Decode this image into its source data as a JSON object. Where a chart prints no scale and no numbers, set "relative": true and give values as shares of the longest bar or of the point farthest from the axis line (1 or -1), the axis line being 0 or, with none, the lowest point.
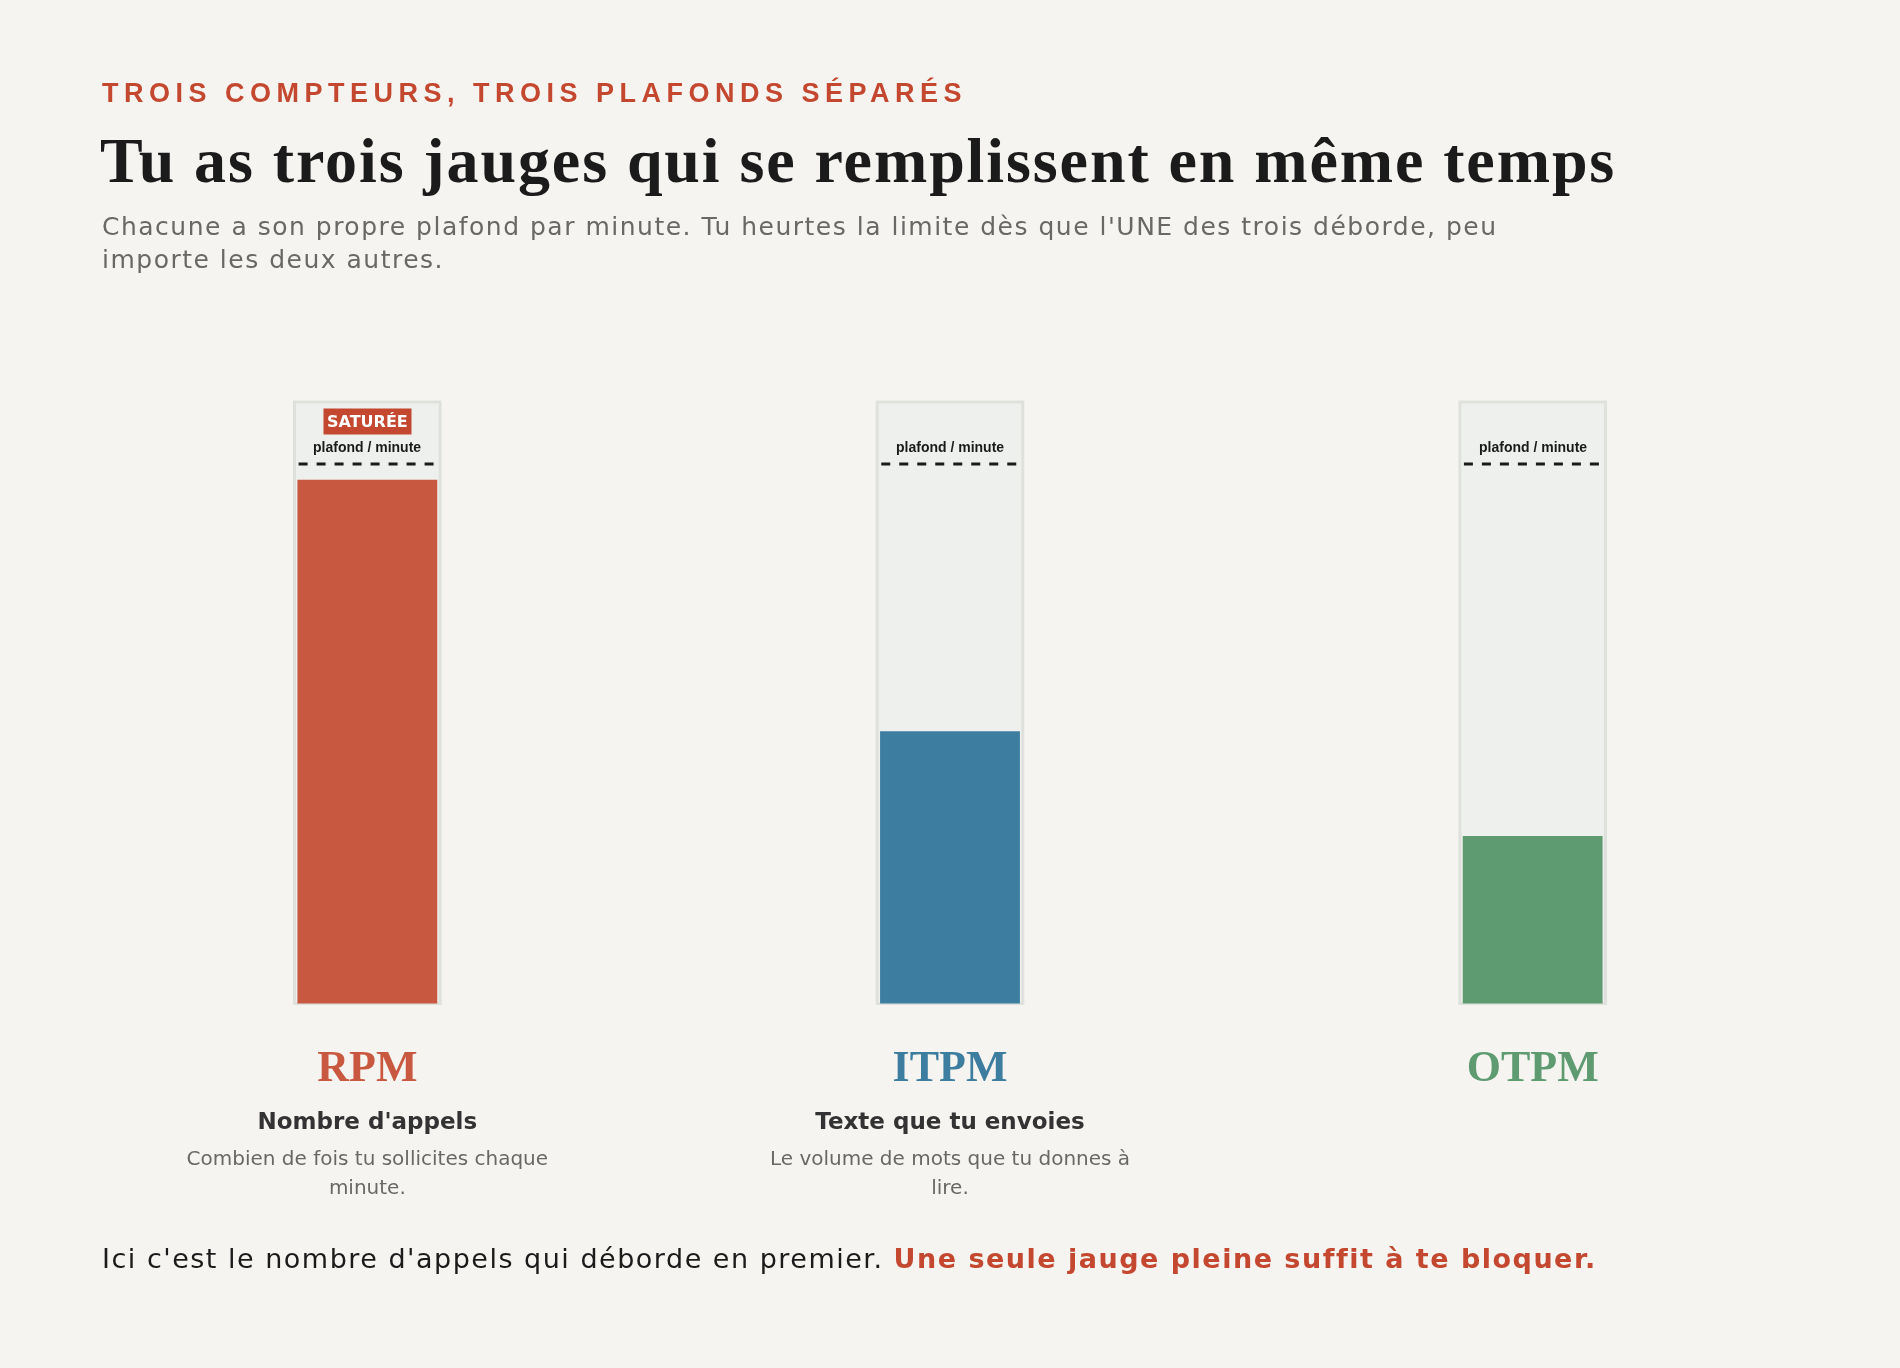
{
  "chart_data": {
    "type": "bar",
    "title": "Tu as trois jauges qui se remplissent en même temps",
    "subtitle": "Chacune a son propre plafond par minute. Tu heurtes la limite dès que l'UNE des trois déborde, peu importe les deux autres.",
    "categories": [
      "RPM\nNombre d'appels\nCombien de fois tu sollicites chaque minute.",
      "ITPM\nTexte que tu envoies\nLe volume de mots que tu donnes à lire.",
      "OTPM"
    ],
    "values": [
      1,
      0.52,
      0.32
    ],
    "colors": [
      "#c85840",
      "#3d7da0",
      "#5e9b71"
    ],
    "relative": true,
    "tick_labels": "x",
    "ref_lines": [
      {
        "axis": "y",
        "value": 1.03,
        "label": "plafond / minute",
        "color": "#1a1a1a",
        "line_style": "dashed"
      }
    ],
    "annotations": [
      "TROIS COMPTEURS, TROIS PLAFONDS SÉPARÉS",
      {
        "text": "SATURÉE",
        "x": "RPM\nNombre d'appels\nCombien de fois tu sollicites chaque minute.",
        "y": 1.03
      },
      "Ici c'est le nombre d'appels qui déborde en premier.",
      "Une seule jauge pleine suffit à te bloquer."
    ]
  }
}
